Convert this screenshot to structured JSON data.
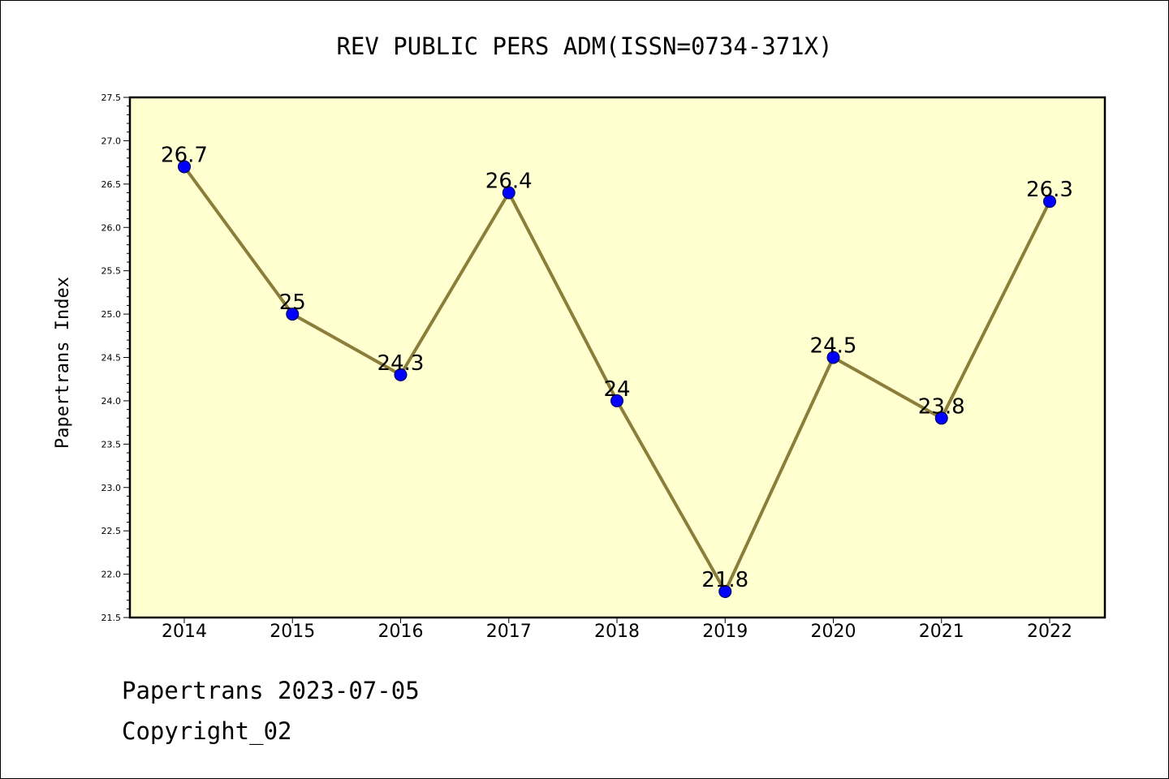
{
  "chart_data": {
    "type": "line",
    "title": "REV PUBLIC PERS ADM(ISSN=0734-371X)",
    "xlabel": "",
    "ylabel": "Papertrans Index",
    "x": [
      "2014",
      "2015",
      "2016",
      "2017",
      "2018",
      "2019",
      "2020",
      "2021",
      "2022"
    ],
    "series": [
      {
        "values": [
          26.7,
          25,
          24.3,
          26.4,
          24,
          21.8,
          24.5,
          23.8,
          26.3
        ],
        "labels": [
          "26.7",
          "25",
          "24.3",
          "26.4",
          "24",
          "21.8",
          "24.5",
          "23.8",
          "26.3"
        ]
      }
    ],
    "ylim": [
      21.5,
      27.5
    ],
    "yticks": [
      "21.5",
      "22.0",
      "22.5",
      "23.0",
      "23.5",
      "24.0",
      "24.5",
      "25.0",
      "25.5",
      "26.0",
      "26.5",
      "27.0",
      "27.5"
    ],
    "grid": false,
    "colors": {
      "plot_background": "#FFFFD0",
      "line": "#8B7D3A",
      "marker": "#0000FF"
    }
  },
  "footer": {
    "line1": "Papertrans 2023-07-05",
    "line2": "Copyright_02"
  }
}
